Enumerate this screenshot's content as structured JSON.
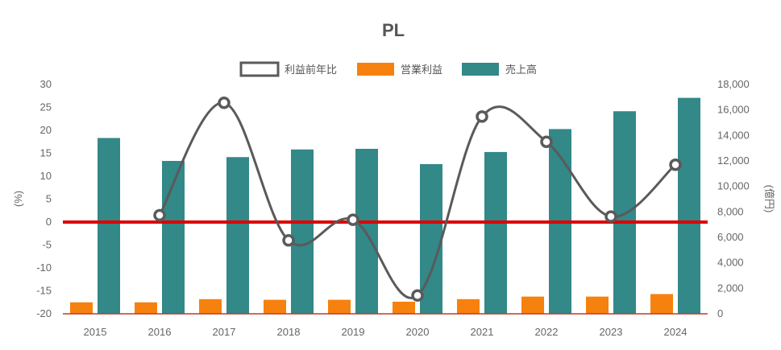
{
  "chart_data": {
    "type": "bar",
    "title": "PL",
    "categories": [
      "2015",
      "2016",
      "2017",
      "2018",
      "2019",
      "2020",
      "2021",
      "2022",
      "2023",
      "2024"
    ],
    "left_axis": {
      "label": "(%)",
      "min": -20,
      "max": 30,
      "step": 5
    },
    "right_axis": {
      "label": "(億円)",
      "min": 0,
      "max": 18000,
      "step": 2000
    },
    "series": [
      {
        "name": "利益前年比",
        "kind": "line",
        "axis": "left",
        "color": "#5a5a5a",
        "values": [
          null,
          1.5,
          26,
          -4,
          0.5,
          -16,
          23,
          17.5,
          1.2,
          12.5
        ]
      },
      {
        "name": "営業利益",
        "kind": "bar",
        "axis": "right",
        "color": "#f7810e",
        "values": [
          900,
          900,
          1150,
          1100,
          1100,
          950,
          1150,
          1350,
          1350,
          1550
        ]
      },
      {
        "name": "売上高",
        "kind": "bar",
        "axis": "right",
        "color": "#338888",
        "values": [
          13800,
          12000,
          12300,
          12900,
          12950,
          11750,
          12700,
          14500,
          15900,
          16950
        ]
      }
    ],
    "zero_line_color": "#dd0000",
    "legend_position": "top-center",
    "grid": false
  }
}
